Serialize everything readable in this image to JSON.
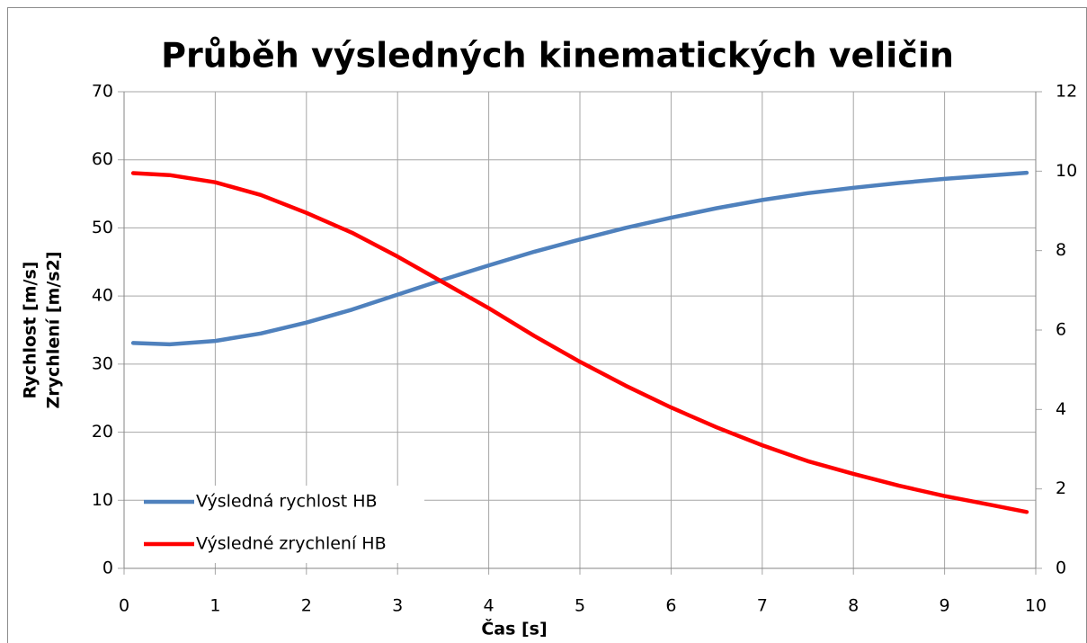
{
  "chart_data": {
    "type": "line",
    "title": "Průběh výsledných kinematických veličin",
    "xlabel": "Čas [s]",
    "ylabel": [
      "Rychlost [m/s]",
      "Zrychlení [m/s2]"
    ],
    "x": [
      0.1,
      0.5,
      1,
      1.5,
      2,
      2.5,
      3,
      3.5,
      4,
      4.5,
      5,
      5.5,
      6,
      6.5,
      7,
      7.5,
      8,
      8.5,
      9,
      9.5,
      9.9
    ],
    "series": [
      {
        "name": "Výsledná rychlost HB",
        "color": "#4f81bd",
        "values": [
          33.1,
          32.9,
          33.4,
          34.5,
          36.1,
          38,
          40.2,
          42.4,
          44.5,
          46.5,
          48.3,
          50,
          51.5,
          52.9,
          54.1,
          55.1,
          55.9,
          56.6,
          57.2,
          57.7,
          58.1
        ]
      },
      {
        "name": "Výsledné zrychlení HB",
        "color": "#ff0000",
        "axis": "y2",
        "values": [
          9.95,
          9.9,
          9.72,
          9.4,
          8.95,
          8.45,
          7.85,
          7.2,
          6.55,
          5.85,
          5.2,
          4.6,
          4.05,
          3.55,
          3.1,
          2.7,
          2.38,
          2.08,
          1.82,
          1.6,
          1.42
        ]
      }
    ],
    "xlim": [
      0,
      10
    ],
    "xticks": [
      0,
      1,
      2,
      3,
      4,
      5,
      6,
      7,
      8,
      9,
      10
    ],
    "ylim": [
      0,
      70
    ],
    "yticks": [
      0,
      10,
      20,
      30,
      40,
      50,
      60,
      70
    ],
    "y2lim": [
      0,
      12
    ],
    "y2ticks": [
      0,
      2,
      4,
      6,
      8,
      10,
      12
    ],
    "grid": true,
    "legend": "lower left"
  }
}
